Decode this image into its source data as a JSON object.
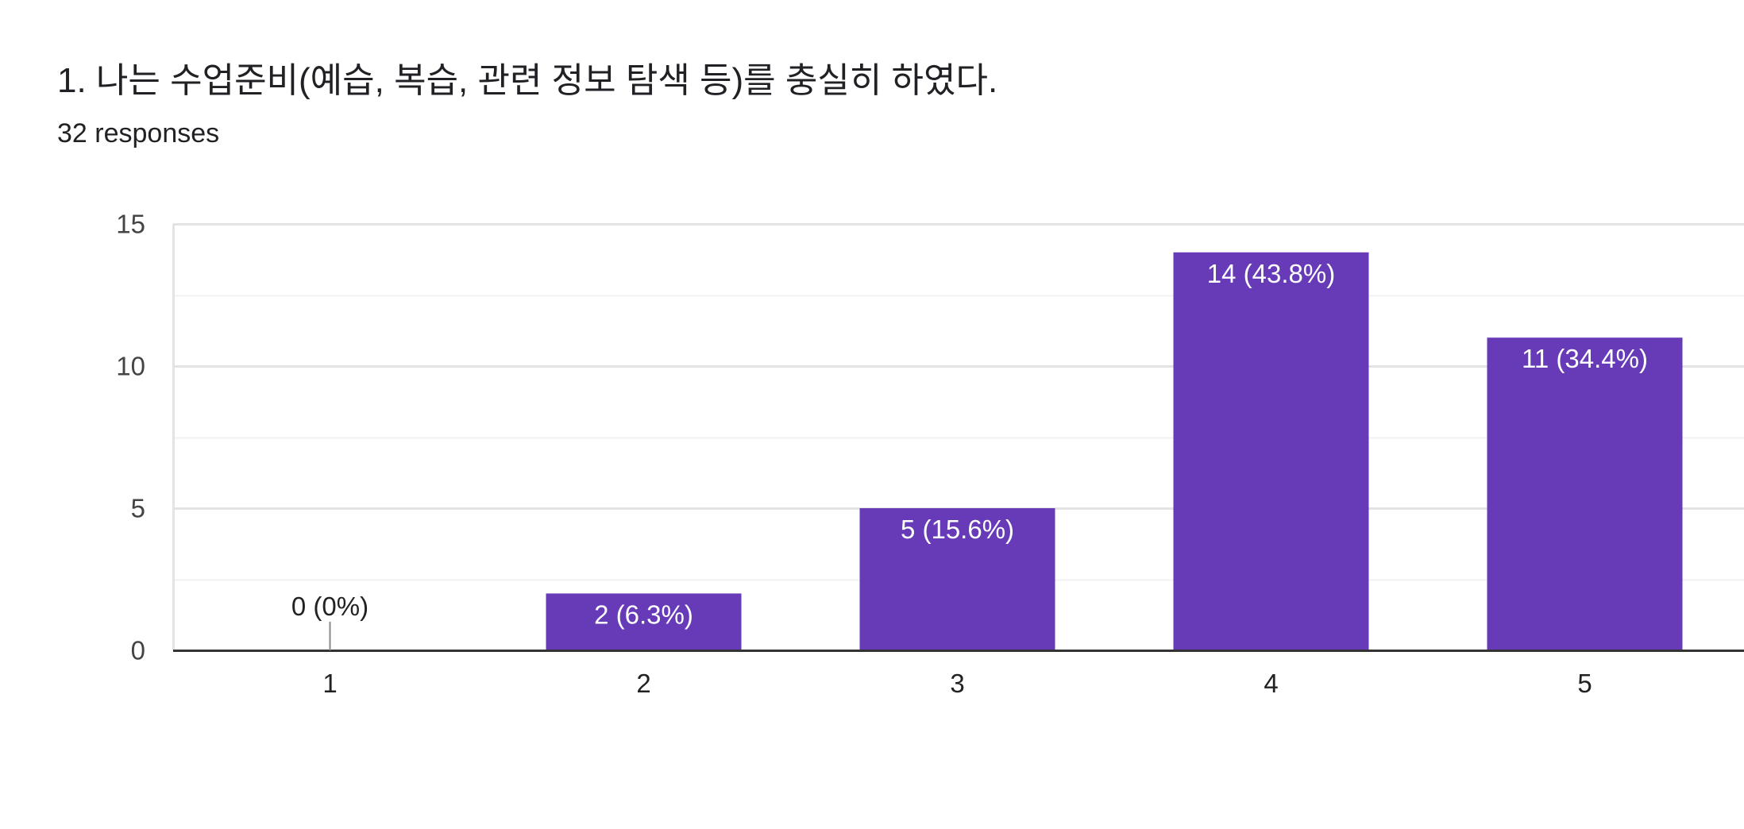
{
  "question": {
    "title": "1. 나는 수업준비(예습, 복습, 관련 정보 탐색 등)를 충실히 하였다.",
    "responses": "32 responses"
  },
  "colors": {
    "bar": "#673AB7",
    "major_grid": "#E3E3E3",
    "minor_grid": "#F1F1F1",
    "axis": "#333333",
    "label_inside": "#FFFFFF",
    "label_outside": "#222222"
  },
  "chart_data": {
    "type": "bar",
    "title": "",
    "xlabel": "",
    "ylabel": "",
    "categories": [
      "1",
      "2",
      "3",
      "4",
      "5"
    ],
    "values": [
      0,
      2,
      5,
      14,
      11
    ],
    "data_labels": [
      "0 (0%)",
      "2 (6.3%)",
      "5 (15.6%)",
      "14 (43.8%)",
      "11 (34.4%)"
    ],
    "ylim": [
      0,
      15
    ],
    "yticks": [
      0,
      5,
      10,
      15
    ],
    "minor_gridlines": [
      2.5,
      7.5,
      12.5
    ],
    "grid": true,
    "legend": "none"
  }
}
